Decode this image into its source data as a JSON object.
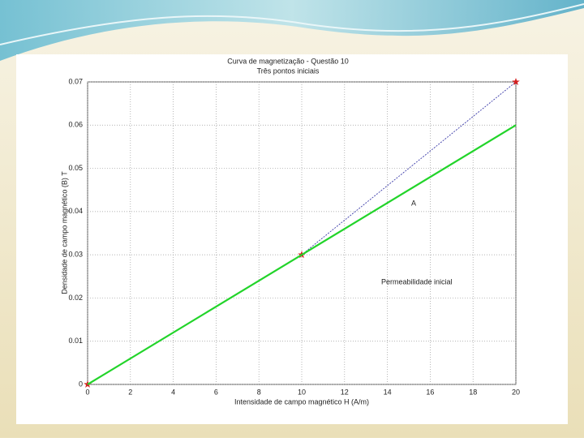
{
  "chart_data": {
    "type": "line",
    "title": "Curva de magnetização - Questão 10",
    "subtitle": "Três pontos iniciais",
    "x_label": "Intensidade de campo magnético H (A/m)",
    "y_label": "Densidade de campo magnético (B) T",
    "x": [
      0,
      10,
      20
    ],
    "series": [
      {
        "color": "#3a3aa8",
        "values": [
          0,
          0.03,
          0.07
        ],
        "style": "dotted",
        "marker_color": "#d42020"
      },
      {
        "color": "#22d42a",
        "values": [
          0,
          0.03,
          0.06
        ],
        "style": "solid"
      }
    ],
    "annotations": [
      "Permeabilidade inicial",
      "A"
    ],
    "xlim": [
      0,
      20
    ],
    "ylim": [
      0,
      0.07
    ],
    "xticks": [
      0,
      2,
      4,
      6,
      8,
      10,
      12,
      14,
      16,
      18,
      20
    ],
    "yticks": [
      0,
      0.01,
      0.02,
      0.03,
      0.04,
      0.05,
      0.06,
      0.07
    ],
    "grid": true
  }
}
